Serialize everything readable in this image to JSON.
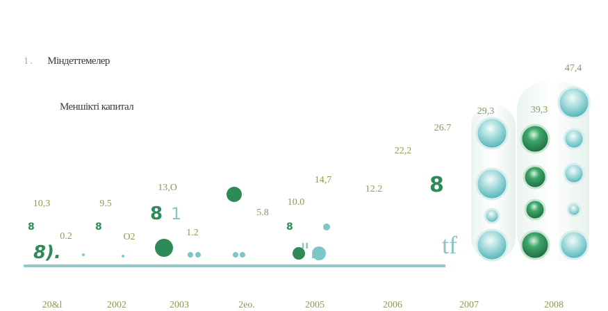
{
  "legend": {
    "item1": {
      "mark": "1 .",
      "label": "Міндеттемелер"
    },
    "item2": {
      "label": "Меншікті капитал"
    }
  },
  "colors": {
    "liabilities": "#2e8b57",
    "equity": "#7cc6c6",
    "axis": "#8fc9c9",
    "labels": "#8a9a52"
  },
  "chart_data": {
    "type": "bar",
    "categories": [
      "20&l",
      "2002",
      "2003",
      "2eo.",
      "2005",
      "2006",
      "2007",
      "2008"
    ],
    "series": [
      {
        "name": "Міндеттемелер",
        "values": [
          10.3,
          9.5,
          13.0,
          null,
          10.0,
          null,
          null,
          39.3
        ]
      },
      {
        "name": "Меншікті капитал",
        "values": [
          0.2,
          null,
          1.2,
          5.8,
          14.7,
          12.2,
          26.7,
          47.4
        ]
      }
    ],
    "labels": [
      {
        "x": "20&l",
        "text": "10,3"
      },
      {
        "x": "20&l",
        "text": "0.2"
      },
      {
        "x": "2002",
        "text": "9.5"
      },
      {
        "x": "2002",
        "text": "O2"
      },
      {
        "x": "2003",
        "text": "13,O"
      },
      {
        "x": "2003",
        "text": "1.2"
      },
      {
        "x": "2eo.",
        "text": "5.8"
      },
      {
        "x": "2005",
        "text": "10.0"
      },
      {
        "x": "2005",
        "text": "14,7"
      },
      {
        "x": "2006",
        "text": "12.2"
      },
      {
        "x": "2006",
        "text": "22,2"
      },
      {
        "x": "2007",
        "text": "26.7"
      },
      {
        "x": "2007",
        "text": "29,3"
      },
      {
        "x": "2008",
        "text": "39,3"
      },
      {
        "x": "2008",
        "text": "47,4"
      }
    ],
    "extra_totals": {
      "2006": 22.2,
      "2007": 29.3,
      "2008": 47.4
    }
  }
}
